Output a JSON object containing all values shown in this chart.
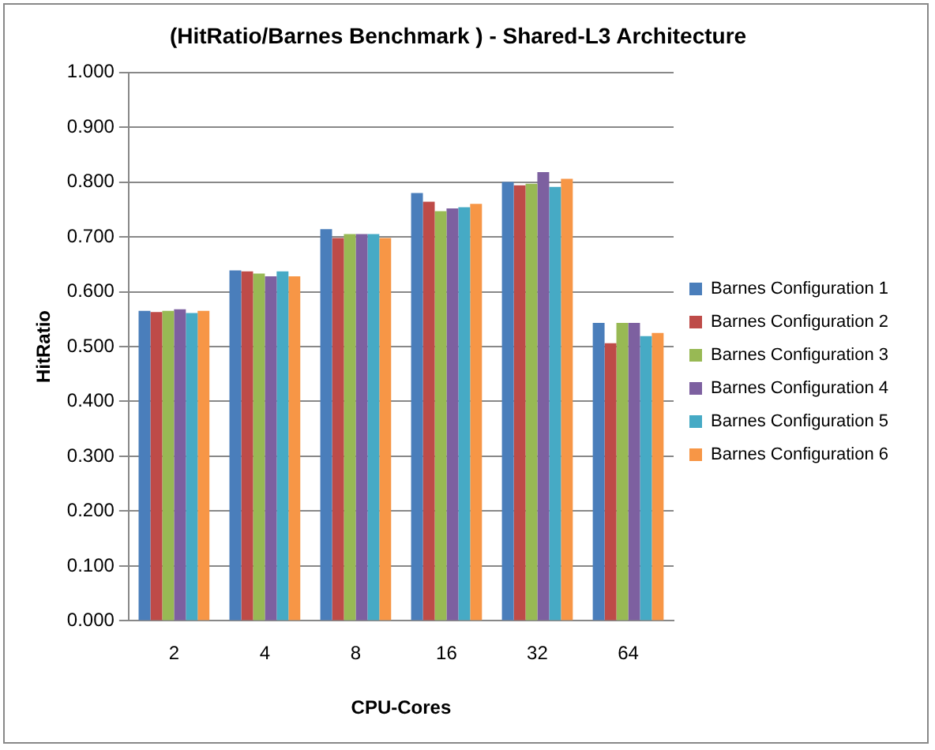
{
  "chart_data": {
    "type": "bar",
    "title": "(HitRatio/Barnes Benchmark ) - Shared-L3 Architecture",
    "xlabel": "CPU-Cores",
    "ylabel": "HitRatio",
    "categories": [
      "2",
      "4",
      "8",
      "16",
      "32",
      "64"
    ],
    "series": [
      {
        "name": "Barnes Configuration 1",
        "color": "#4a7ebb",
        "values": [
          0.565,
          0.639,
          0.714,
          0.78,
          0.8,
          0.543
        ]
      },
      {
        "name": "Barnes Configuration 2",
        "color": "#be4b48",
        "values": [
          0.563,
          0.637,
          0.698,
          0.764,
          0.794,
          0.506
        ]
      },
      {
        "name": "Barnes Configuration 3",
        "color": "#98b954",
        "values": [
          0.565,
          0.633,
          0.705,
          0.747,
          0.797,
          0.543
        ]
      },
      {
        "name": "Barnes Configuration 4",
        "color": "#7d60a0",
        "values": [
          0.568,
          0.628,
          0.705,
          0.752,
          0.818,
          0.543
        ]
      },
      {
        "name": "Barnes Configuration 5",
        "color": "#46aac5",
        "values": [
          0.561,
          0.637,
          0.705,
          0.754,
          0.791,
          0.519
        ]
      },
      {
        "name": "Barnes Configuration 6",
        "color": "#f79646",
        "values": [
          0.565,
          0.628,
          0.698,
          0.76,
          0.806,
          0.525
        ]
      }
    ],
    "ylim": [
      0,
      1
    ],
    "yticks": [
      {
        "value": 0,
        "label": "0.000"
      },
      {
        "value": 0.1,
        "label": "0.100"
      },
      {
        "value": 0.2,
        "label": "0.200"
      },
      {
        "value": 0.3,
        "label": "0.300"
      },
      {
        "value": 0.4,
        "label": "0.400"
      },
      {
        "value": 0.5,
        "label": "0.500"
      },
      {
        "value": 0.6,
        "label": "0.600"
      },
      {
        "value": 0.7,
        "label": "0.700"
      },
      {
        "value": 0.8,
        "label": "0.800"
      },
      {
        "value": 0.9,
        "label": "0.900"
      },
      {
        "value": 1,
        "label": "1.000"
      }
    ],
    "grid": "y",
    "legend": "right"
  }
}
